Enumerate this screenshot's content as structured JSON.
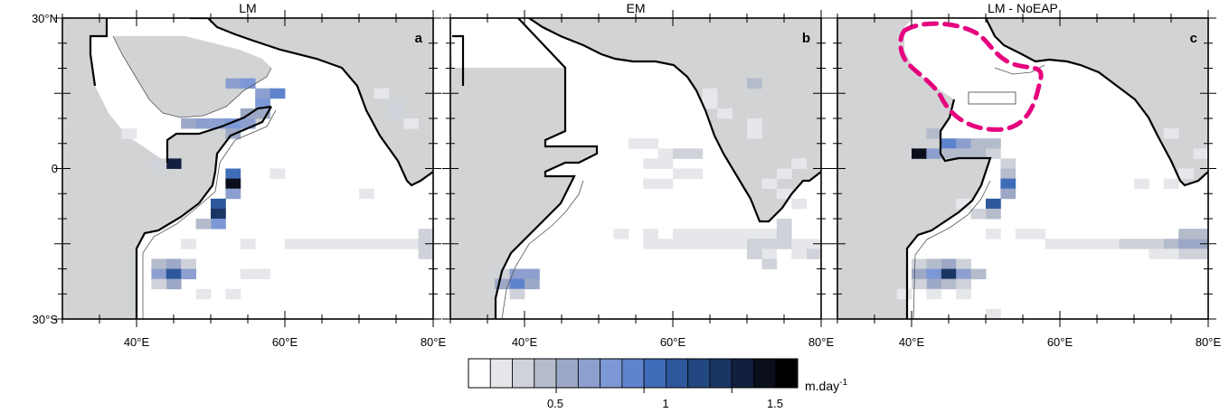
{
  "panels": [
    {
      "title": "LM",
      "label": "a",
      "cells": [
        [
          53,
          17,
          5
        ],
        [
          55,
          17,
          6
        ],
        [
          57,
          15,
          5
        ],
        [
          59,
          15,
          7
        ],
        [
          57,
          13,
          6
        ],
        [
          55,
          11,
          4
        ],
        [
          57,
          11,
          4
        ],
        [
          47,
          9,
          4
        ],
        [
          49,
          9,
          5
        ],
        [
          51,
          9,
          5
        ],
        [
          53,
          9,
          6
        ],
        [
          55,
          9,
          5
        ],
        [
          53,
          7,
          4
        ],
        [
          45,
          1,
          12
        ],
        [
          43,
          1,
          2
        ],
        [
          53,
          -1,
          8
        ],
        [
          53,
          -3,
          13
        ],
        [
          53,
          -5,
          5
        ],
        [
          51,
          -7,
          9
        ],
        [
          51,
          -9,
          11
        ],
        [
          51,
          -11,
          6
        ],
        [
          49,
          -11,
          3
        ],
        [
          39,
          7,
          1
        ],
        [
          47,
          -15,
          1
        ],
        [
          55,
          -15,
          1
        ],
        [
          61,
          -15,
          1
        ],
        [
          63,
          -15,
          1
        ],
        [
          65,
          -15,
          1
        ],
        [
          67,
          -15,
          1
        ],
        [
          69,
          -15,
          1
        ],
        [
          71,
          -15,
          1
        ],
        [
          73,
          -15,
          1
        ],
        [
          75,
          -15,
          1
        ],
        [
          77,
          -15,
          1
        ],
        [
          79,
          -15,
          2
        ],
        [
          79,
          -13,
          2
        ],
        [
          79,
          -17,
          2
        ],
        [
          43,
          -19,
          3
        ],
        [
          45,
          -19,
          4
        ],
        [
          47,
          -19,
          2
        ],
        [
          43,
          -21,
          5
        ],
        [
          45,
          -21,
          9
        ],
        [
          47,
          -21,
          5
        ],
        [
          45,
          -23,
          4
        ],
        [
          43,
          -23,
          2
        ],
        [
          49,
          -25,
          1
        ],
        [
          53,
          -25,
          1
        ],
        [
          55,
          -21,
          1
        ],
        [
          57,
          -21,
          1
        ],
        [
          73,
          15,
          1
        ],
        [
          75,
          13,
          2
        ],
        [
          75,
          11,
          2
        ],
        [
          77,
          9,
          1
        ],
        [
          71,
          -5,
          1
        ],
        [
          59,
          -1,
          1
        ]
      ],
      "water_mask": [
        [
          38,
          21
        ],
        [
          40,
          20
        ],
        [
          42,
          15
        ],
        [
          44,
          13
        ],
        [
          46,
          10
        ],
        [
          48,
          8
        ],
        [
          50,
          8
        ],
        [
          52,
          8
        ],
        [
          54,
          10
        ],
        [
          56,
          12
        ],
        [
          58,
          14
        ],
        [
          58,
          10
        ],
        [
          56,
          10
        ],
        [
          54,
          6
        ],
        [
          50,
          4
        ],
        [
          46,
          0
        ],
        [
          44,
          -2
        ],
        [
          46,
          -2
        ]
      ]
    },
    {
      "title": "EM",
      "label": "b",
      "cells": [
        [
          71,
          17,
          3
        ],
        [
          65,
          15,
          1
        ],
        [
          65,
          13,
          1
        ],
        [
          67,
          11,
          1
        ],
        [
          71,
          9,
          1
        ],
        [
          71,
          7,
          1
        ],
        [
          55,
          5,
          1
        ],
        [
          57,
          5,
          1
        ],
        [
          59,
          3,
          1
        ],
        [
          61,
          3,
          2
        ],
        [
          63,
          3,
          2
        ],
        [
          57,
          1,
          1
        ],
        [
          59,
          1,
          1
        ],
        [
          61,
          -1,
          1
        ],
        [
          63,
          -1,
          1
        ],
        [
          57,
          -3,
          1
        ],
        [
          59,
          -3,
          1
        ],
        [
          77,
          1,
          1
        ],
        [
          75,
          -1,
          1
        ],
        [
          73,
          -3,
          1
        ],
        [
          75,
          -5,
          1
        ],
        [
          77,
          -7,
          1
        ],
        [
          53,
          -13,
          1
        ],
        [
          57,
          -13,
          1
        ],
        [
          61,
          -13,
          1
        ],
        [
          63,
          -13,
          1
        ],
        [
          65,
          -13,
          1
        ],
        [
          67,
          -13,
          1
        ],
        [
          69,
          -13,
          1
        ],
        [
          71,
          -13,
          1
        ],
        [
          73,
          -13,
          1
        ],
        [
          57,
          -15,
          1
        ],
        [
          59,
          -15,
          1
        ],
        [
          61,
          -15,
          1
        ],
        [
          63,
          -15,
          1
        ],
        [
          65,
          -15,
          1
        ],
        [
          67,
          -15,
          1
        ],
        [
          69,
          -15,
          1
        ],
        [
          71,
          -15,
          2
        ],
        [
          73,
          -15,
          2
        ],
        [
          75,
          -15,
          2
        ],
        [
          77,
          -15,
          1
        ],
        [
          79,
          -15,
          1
        ],
        [
          75,
          -11,
          2
        ],
        [
          75,
          -13,
          2
        ],
        [
          79,
          -17,
          2
        ],
        [
          77,
          -17,
          1
        ],
        [
          73,
          -17,
          1
        ],
        [
          71,
          -17,
          2
        ],
        [
          73,
          -19,
          2
        ],
        [
          37,
          -21,
          2
        ],
        [
          39,
          -21,
          5
        ],
        [
          41,
          -21,
          5
        ],
        [
          37,
          -23,
          4
        ],
        [
          39,
          -23,
          7
        ],
        [
          41,
          -23,
          4
        ],
        [
          39,
          -25,
          2
        ]
      ]
    },
    {
      "title": "LM - NoEAP",
      "label": "c",
      "cells": [
        [
          43,
          7,
          3
        ],
        [
          45,
          5,
          7
        ],
        [
          47,
          5,
          5
        ],
        [
          49,
          5,
          3
        ],
        [
          51,
          5,
          3
        ],
        [
          41,
          3,
          13
        ],
        [
          43,
          3,
          5
        ],
        [
          45,
          3,
          3
        ],
        [
          47,
          3,
          3
        ],
        [
          49,
          3,
          3
        ],
        [
          51,
          3,
          2
        ],
        [
          53,
          1,
          2
        ],
        [
          53,
          -1,
          3
        ],
        [
          53,
          -3,
          8
        ],
        [
          53,
          -5,
          4
        ],
        [
          51,
          -7,
          9
        ],
        [
          51,
          -9,
          3
        ],
        [
          49,
          -9,
          2
        ],
        [
          47,
          -7,
          1
        ],
        [
          75,
          7,
          1
        ],
        [
          79,
          3,
          1
        ],
        [
          77,
          -1,
          1
        ],
        [
          71,
          -3,
          1
        ],
        [
          75,
          -3,
          1
        ],
        [
          51,
          -13,
          1
        ],
        [
          55,
          -13,
          1
        ],
        [
          57,
          -13,
          1
        ],
        [
          59,
          -15,
          1
        ],
        [
          61,
          -15,
          1
        ],
        [
          63,
          -15,
          1
        ],
        [
          65,
          -15,
          1
        ],
        [
          67,
          -15,
          1
        ],
        [
          69,
          -15,
          2
        ],
        [
          71,
          -15,
          2
        ],
        [
          73,
          -15,
          2
        ],
        [
          75,
          -15,
          3
        ],
        [
          77,
          -15,
          4
        ],
        [
          79,
          -15,
          4
        ],
        [
          77,
          -13,
          3
        ],
        [
          79,
          -13,
          3
        ],
        [
          77,
          -17,
          2
        ],
        [
          79,
          -17,
          2
        ],
        [
          73,
          -17,
          1
        ],
        [
          75,
          -17,
          1
        ],
        [
          41,
          -19,
          2
        ],
        [
          43,
          -19,
          3
        ],
        [
          45,
          -19,
          4
        ],
        [
          47,
          -19,
          2
        ],
        [
          41,
          -21,
          4
        ],
        [
          43,
          -21,
          6
        ],
        [
          45,
          -21,
          11
        ],
        [
          47,
          -21,
          5
        ],
        [
          49,
          -21,
          3
        ],
        [
          43,
          -23,
          4
        ],
        [
          45,
          -23,
          3
        ],
        [
          47,
          -23,
          2
        ],
        [
          41,
          -23,
          2
        ],
        [
          39,
          -25,
          1
        ],
        [
          43,
          -25,
          1
        ],
        [
          47,
          -25,
          1
        ],
        [
          51,
          -29,
          1
        ]
      ],
      "region": "dashed"
    }
  ],
  "axes": {
    "lon_range": [
      30,
      80
    ],
    "lat_range": [
      -30,
      30
    ],
    "x_ticks": [
      40,
      60,
      80
    ],
    "x_tick_labels": [
      "40°E",
      "60°E",
      "80°E"
    ],
    "y_ticks": [
      30,
      0,
      -30
    ],
    "y_tick_labels": [
      "30°N",
      "0",
      "30°S"
    ]
  },
  "colorbar": {
    "colors": [
      "#ffffff",
      "#e6e7ea",
      "#cfd2d9",
      "#b4bbcb",
      "#9ca8c6",
      "#8c9fcf",
      "#7d98d6",
      "#5f84cd",
      "#3f6cb8",
      "#2e579c",
      "#234780",
      "#1b3563",
      "#131f3e",
      "#0b0f1c",
      "#000000"
    ],
    "tick_labels": [
      "0.5",
      "1",
      "1.5"
    ],
    "tick_positions": [
      4,
      8,
      12
    ],
    "units_base": "m.day",
    "units_exp": "-1"
  },
  "colors": {
    "land": "#d1d3d4",
    "highlight": "#e6007e"
  }
}
